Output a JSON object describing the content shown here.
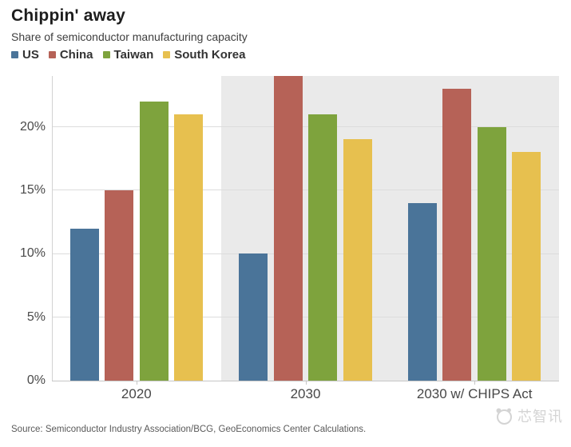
{
  "header": {
    "title": "Chippin' away",
    "subtitle": "Share of semiconductor manufacturing capacity"
  },
  "chart_data": {
    "type": "bar",
    "title": "Chippin' away",
    "subtitle": "Share of semiconductor manufacturing capacity",
    "categories": [
      "2020",
      "2030",
      "2030 w/ CHIPS Act"
    ],
    "series": [
      {
        "name": "US",
        "color": "#4a7499",
        "values": [
          12,
          10,
          14
        ]
      },
      {
        "name": "China",
        "color": "#b66257",
        "values": [
          15,
          24,
          23
        ]
      },
      {
        "name": "Taiwan",
        "color": "#7ea33d",
        "values": [
          22,
          21,
          20
        ]
      },
      {
        "name": "South Korea",
        "color": "#e7c04f",
        "values": [
          21,
          19,
          18
        ]
      }
    ],
    "xlabel": "",
    "ylabel": "",
    "ylim": [
      0,
      24
    ],
    "yticks": [
      0,
      5,
      10,
      15,
      20
    ],
    "ytick_labels": [
      "0%",
      "5%",
      "10%",
      "15%",
      "20%"
    ],
    "grid": true,
    "legend_position": "top-left",
    "highlight_groups": [
      1,
      2
    ],
    "highlight_color": "#eaeaea",
    "gridline_color": "#dcdcdc",
    "axis_color": "#c6c6c6"
  },
  "footer": {
    "source": "Source: Semiconductor Industry Association/BCG, GeoEconomics Center Calculations.",
    "watermark": "芯智讯"
  }
}
